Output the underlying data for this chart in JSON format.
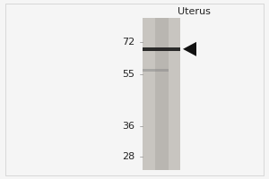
{
  "title": "Uterus",
  "mw_markers": [
    72,
    55,
    36,
    28
  ],
  "band_main_mw": 68,
  "band_faint_mw": 57,
  "bg_color": "#f5f5f5",
  "lane_bg_color": "#c8c5c0",
  "lane_inner_color": "#b0aca8",
  "band_main_color": "#1a1a1a",
  "band_faint_color": "#888888",
  "text_color": "#222222",
  "arrowhead_color": "#111111",
  "ylim_log_min": 25,
  "ylim_log_max": 88,
  "title_fontsize": 8,
  "marker_fontsize": 8
}
